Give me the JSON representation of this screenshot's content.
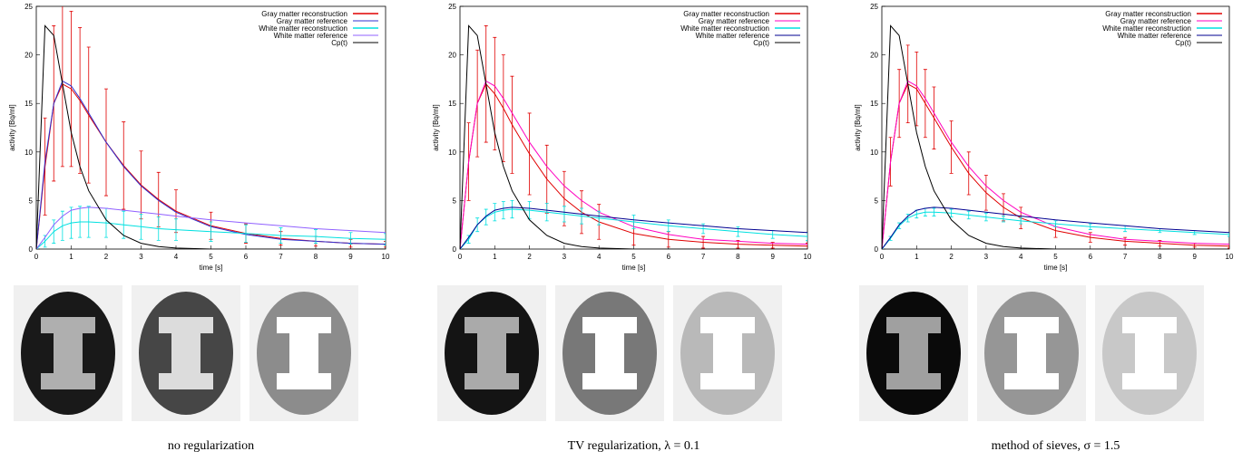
{
  "chart_data": [
    {
      "type": "line",
      "caption": "no regularization",
      "xlabel": "time [s]",
      "ylabel": "activity [Bq/ml]",
      "x": [
        0,
        0.25,
        0.5,
        0.75,
        1,
        1.25,
        1.5,
        2,
        2.5,
        3,
        3.5,
        4,
        5,
        6,
        7,
        8,
        9,
        10
      ],
      "xlim": [
        0,
        10
      ],
      "xticks": [
        0,
        1,
        2,
        3,
        4,
        5,
        6,
        7,
        8,
        9,
        10
      ],
      "ylim": [
        0,
        25
      ],
      "yticks": [
        0,
        5,
        10,
        15,
        20,
        25
      ],
      "legend": "upper right",
      "series": [
        {
          "name": "Gray matter reconstruction",
          "color": "#e00000",
          "values": [
            0,
            8.5,
            15,
            17,
            16.5,
            15.3,
            13.8,
            11,
            8.6,
            6.6,
            5.1,
            3.9,
            2.4,
            1.6,
            1.1,
            0.8,
            0.6,
            0.5
          ],
          "errors": [
            0,
            5,
            8,
            8.5,
            8,
            7.5,
            7,
            5.5,
            4.5,
            3.5,
            2.8,
            2.2,
            1.4,
            1,
            0.7,
            0.5,
            0.4,
            0.3
          ]
        },
        {
          "name": "Gray matter reference",
          "color": "#3030d0",
          "values": [
            0,
            9,
            15,
            17.3,
            16.8,
            15.5,
            14,
            11,
            8.5,
            6.5,
            5,
            3.8,
            2.3,
            1.5,
            1,
            0.8,
            0.6,
            0.5
          ]
        },
        {
          "name": "White matter reconstruction",
          "color": "#00e0e0",
          "values": [
            0,
            0.8,
            1.8,
            2.4,
            2.7,
            2.8,
            2.8,
            2.7,
            2.5,
            2.3,
            2.1,
            2,
            1.8,
            1.6,
            1.4,
            1.3,
            1.1,
            1
          ],
          "errors": [
            0,
            0.6,
            1.2,
            1.5,
            1.6,
            1.6,
            1.6,
            1.5,
            1.4,
            1.3,
            1.2,
            1.1,
            1,
            0.9,
            0.8,
            0.7,
            0.6,
            0.6
          ]
        },
        {
          "name": "White matter reference",
          "color": "#9060ff",
          "values": [
            0,
            1.2,
            2.5,
            3.4,
            4,
            4.2,
            4.3,
            4.2,
            4,
            3.8,
            3.6,
            3.4,
            3,
            2.7,
            2.4,
            2.1,
            1.9,
            1.7
          ]
        },
        {
          "name": "Cp(t)",
          "color": "#000000",
          "values": [
            0,
            23,
            22,
            17,
            12,
            8.5,
            6,
            3,
            1.4,
            0.6,
            0.25,
            0.1,
            0,
            0,
            0,
            0,
            0,
            0
          ]
        }
      ]
    },
    {
      "type": "line",
      "caption": "TV regularization, λ = 0.1",
      "xlabel": "time [s]",
      "ylabel": "activity [Bq/ml]",
      "x": [
        0,
        0.25,
        0.5,
        0.75,
        1,
        1.25,
        1.5,
        2,
        2.5,
        3,
        3.5,
        4,
        5,
        6,
        7,
        8,
        9,
        10
      ],
      "xlim": [
        0,
        10
      ],
      "xticks": [
        0,
        1,
        2,
        3,
        4,
        5,
        6,
        7,
        8,
        9,
        10
      ],
      "ylim": [
        0,
        25
      ],
      "yticks": [
        0,
        5,
        10,
        15,
        20,
        25
      ],
      "legend": "upper right",
      "series": [
        {
          "name": "Gray matter reconstruction",
          "color": "#e00000",
          "values": [
            0,
            9,
            15,
            17,
            16,
            14.5,
            12.8,
            9.8,
            7.2,
            5.2,
            3.8,
            2.8,
            1.6,
            1,
            0.7,
            0.5,
            0.4,
            0.3
          ],
          "errors": [
            0,
            4,
            5.5,
            6,
            5.8,
            5.5,
            5,
            4.2,
            3.5,
            2.8,
            2.2,
            1.8,
            1.2,
            0.8,
            0.6,
            0.4,
            0.3,
            0.3
          ]
        },
        {
          "name": "Gray matter reference",
          "color": "#ff00c0",
          "values": [
            0,
            9,
            15,
            17.3,
            16.8,
            15.5,
            14,
            11,
            8.5,
            6.5,
            5,
            3.8,
            2.3,
            1.5,
            1,
            0.8,
            0.6,
            0.5
          ]
        },
        {
          "name": "White matter reconstruction",
          "color": "#00e0e0",
          "values": [
            0,
            1,
            2.5,
            3.3,
            3.8,
            4,
            4.1,
            4,
            3.8,
            3.6,
            3.4,
            3.2,
            2.8,
            2.4,
            2.1,
            1.8,
            1.5,
            1.3
          ],
          "errors": [
            0,
            0.4,
            0.7,
            0.8,
            0.9,
            0.9,
            0.9,
            0.9,
            0.9,
            0.8,
            0.8,
            0.7,
            0.7,
            0.6,
            0.5,
            0.5,
            0.4,
            0.4
          ]
        },
        {
          "name": "White matter reference",
          "color": "#000090",
          "values": [
            0,
            1.2,
            2.5,
            3.4,
            4,
            4.2,
            4.3,
            4.2,
            4,
            3.8,
            3.6,
            3.4,
            3,
            2.7,
            2.4,
            2.1,
            1.9,
            1.7
          ]
        },
        {
          "name": "Cp(t)",
          "color": "#000000",
          "values": [
            0,
            23,
            22,
            17,
            12,
            8.5,
            6,
            3,
            1.4,
            0.6,
            0.25,
            0.1,
            0,
            0,
            0,
            0,
            0,
            0
          ]
        }
      ]
    },
    {
      "type": "line",
      "caption": "method of sieves, σ = 1.5",
      "xlabel": "time [s]",
      "ylabel": "activity [Bq/ml]",
      "x": [
        0,
        0.25,
        0.5,
        0.75,
        1,
        1.25,
        1.5,
        2,
        2.5,
        3,
        3.5,
        4,
        5,
        6,
        7,
        8,
        9,
        10
      ],
      "xlim": [
        0,
        10
      ],
      "xticks": [
        0,
        1,
        2,
        3,
        4,
        5,
        6,
        7,
        8,
        9,
        10
      ],
      "ylim": [
        0,
        25
      ],
      "yticks": [
        0,
        5,
        10,
        15,
        20,
        25
      ],
      "legend": "upper right",
      "series": [
        {
          "name": "Gray matter reconstruction",
          "color": "#e00000",
          "values": [
            0,
            9,
            15,
            17,
            16.5,
            15,
            13.5,
            10.5,
            7.8,
            5.8,
            4.3,
            3.2,
            1.9,
            1.2,
            0.8,
            0.6,
            0.4,
            0.3
          ],
          "errors": [
            0,
            2.5,
            3.5,
            4,
            3.8,
            3.5,
            3.2,
            2.7,
            2.2,
            1.8,
            1.4,
            1.1,
            0.7,
            0.5,
            0.4,
            0.3,
            0.2,
            0.2
          ]
        },
        {
          "name": "Gray matter reference",
          "color": "#ff00c0",
          "values": [
            0,
            9,
            15,
            17.3,
            16.8,
            15.5,
            14,
            11,
            8.5,
            6.5,
            5,
            3.8,
            2.3,
            1.5,
            1,
            0.8,
            0.6,
            0.5
          ]
        },
        {
          "name": "White matter reconstruction",
          "color": "#00e0e0",
          "values": [
            0,
            1.1,
            2.4,
            3.2,
            3.6,
            3.8,
            3.8,
            3.7,
            3.5,
            3.3,
            3.1,
            2.9,
            2.6,
            2.3,
            2.1,
            1.9,
            1.7,
            1.5
          ],
          "errors": [
            0,
            0.2,
            0.3,
            0.4,
            0.4,
            0.4,
            0.4,
            0.4,
            0.4,
            0.4,
            0.3,
            0.3,
            0.3,
            0.3,
            0.3,
            0.2,
            0.2,
            0.2
          ]
        },
        {
          "name": "White matter reference",
          "color": "#000090",
          "values": [
            0,
            1.2,
            2.5,
            3.4,
            4,
            4.2,
            4.3,
            4.2,
            4,
            3.8,
            3.6,
            3.4,
            3,
            2.7,
            2.4,
            2.1,
            1.9,
            1.7
          ]
        },
        {
          "name": "Cp(t)",
          "color": "#000000",
          "values": [
            0,
            23,
            22,
            17,
            12,
            8.5,
            6,
            3,
            1.4,
            0.6,
            0.25,
            0.1,
            0,
            0,
            0,
            0,
            0,
            0
          ]
        }
      ]
    }
  ]
}
